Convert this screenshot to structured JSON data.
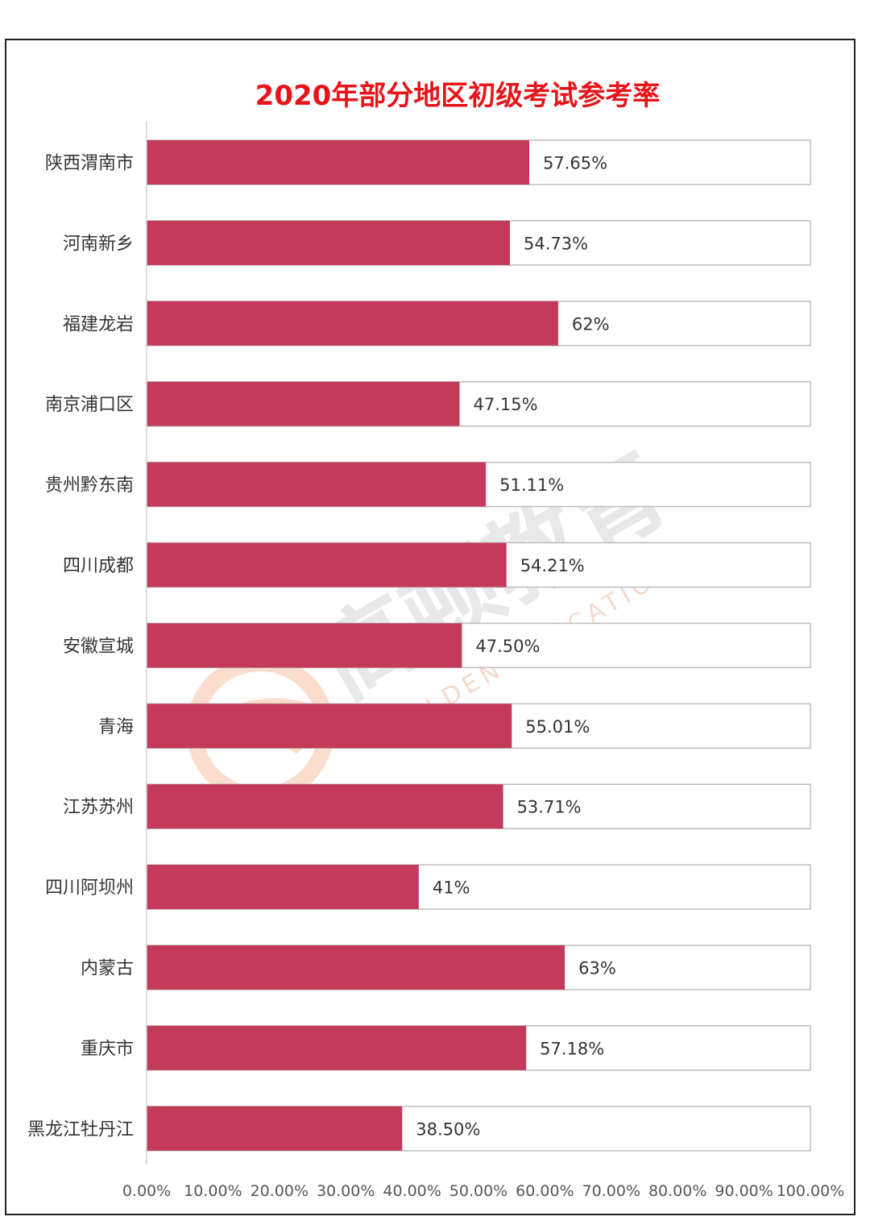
{
  "chart_data": {
    "type": "bar",
    "orientation": "horizontal",
    "title": "2020年部分地区初级考试参考率",
    "categories": [
      "陕西渭南市",
      "河南新乡",
      "福建龙岩",
      "南京浦口区",
      "贵州黔东南",
      "四川成都",
      "安徽宣城",
      "青海",
      "江苏苏州",
      "四川阿坝州",
      "内蒙古",
      "重庆市",
      "黑龙江牡丹江"
    ],
    "values": [
      57.65,
      54.73,
      62,
      47.15,
      51.11,
      54.21,
      47.5,
      55.01,
      53.71,
      41,
      63,
      57.18,
      38.5
    ],
    "data_labels": [
      "57.65%",
      "54.73%",
      "62%",
      "47.15%",
      "51.11%",
      "54.21%",
      "47.50%",
      "55.01%",
      "53.71%",
      "41%",
      "63%",
      "57.18%",
      "38.50%"
    ],
    "xlim": [
      0,
      100
    ],
    "x_ticks": [
      "0.00%",
      "10.00%",
      "20.00%",
      "30.00%",
      "40.00%",
      "50.00%",
      "60.00%",
      "70.00%",
      "80.00%",
      "90.00%",
      "100.00%"
    ],
    "grid": false,
    "legend": "none",
    "bar_color": "#c33a5a",
    "background_bar_color": "#ffffff",
    "background_bar_border": "#bdbdbd"
  },
  "watermark": {
    "text": "高顿教育",
    "subtext": "GOLDEN EDUCATION",
    "logo_color": "#f4b48f"
  }
}
